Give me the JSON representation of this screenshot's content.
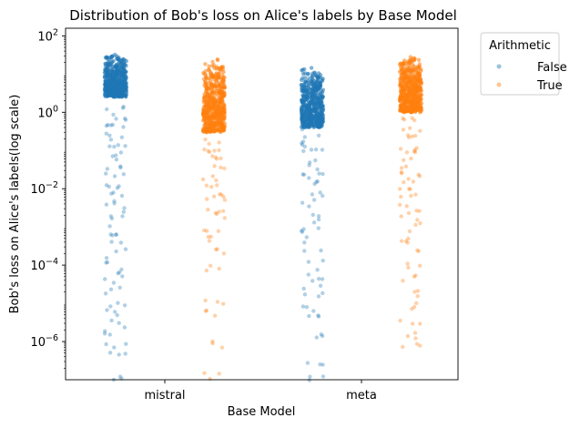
{
  "chart_data": {
    "type": "strip",
    "title": "Distribution of Bob's loss on Alice's labels by Base Model",
    "xlabel": "Base Model",
    "ylabel": "Bob's loss on Alice's labels(log scale)",
    "yscale": "log",
    "ylim": [
      1e-07,
      200
    ],
    "yticks": [
      {
        "value": 100,
        "mant": "10",
        "exp": "2"
      },
      {
        "value": 1,
        "mant": "10",
        "exp": "0"
      },
      {
        "value": 0.01,
        "mant": "10",
        "exp": "−2"
      },
      {
        "value": 0.0001,
        "mant": "10",
        "exp": "−4"
      },
      {
        "value": 1e-06,
        "mant": "10",
        "exp": "−6"
      }
    ],
    "categories": [
      "mistral",
      "meta"
    ],
    "legend": {
      "title": "Arithmetic",
      "position": "upper right, outside"
    },
    "series": [
      {
        "name": "False",
        "color": "#1f77b4",
        "groups": [
          {
            "category": "mistral",
            "dense_range": [
              2.5,
              35
            ],
            "tail_values": [
              1.5,
              0.9,
              0.6,
              0.4,
              0.25,
              0.15,
              0.1,
              0.06,
              0.04,
              0.02,
              0.012,
              0.008,
              0.005,
              0.003,
              0.0015,
              0.0008,
              0.0005,
              0.0003,
              0.00015,
              8e-05,
              4e-05,
              2e-05,
              1e-05,
              6e-06,
              3e-06,
              1.5e-06,
              8e-07,
              4e-07,
              1.2e-07
            ]
          },
          {
            "category": "meta",
            "dense_range": [
              0.4,
              15
            ],
            "tail_values": [
              0.3,
              0.2,
              0.12,
              0.08,
              0.05,
              0.03,
              0.02,
              0.012,
              0.007,
              0.004,
              0.002,
              0.001,
              0.0006,
              0.0003,
              0.0001,
              5e-05,
              3e-05,
              1.5e-05,
              8e-06,
              4e-06,
              1.5e-06,
              3e-07,
              1.2e-07
            ]
          }
        ]
      },
      {
        "name": "True",
        "color": "#ff7f0e",
        "groups": [
          {
            "category": "mistral",
            "dense_range": [
              0.3,
              28
            ],
            "tail_values": [
              0.2,
              0.12,
              0.08,
              0.05,
              0.03,
              0.02,
              0.012,
              0.008,
              0.005,
              0.003,
              0.002,
              0.001,
              0.0005,
              0.0002,
              8e-05,
              1.2e-05,
              5e-06,
              8e-07,
              1.2e-07
            ]
          },
          {
            "category": "meta",
            "dense_range": [
              1,
              30
            ],
            "tail_values": [
              0.8,
              0.5,
              0.3,
              0.2,
              0.12,
              0.08,
              0.05,
              0.03,
              0.02,
              0.012,
              0.008,
              0.005,
              0.003,
              0.002,
              0.001,
              0.0005,
              0.0003,
              0.0001,
              5e-05,
              2e-05,
              8e-06,
              3e-06,
              1.5e-06,
              8e-07
            ]
          }
        ]
      }
    ]
  }
}
